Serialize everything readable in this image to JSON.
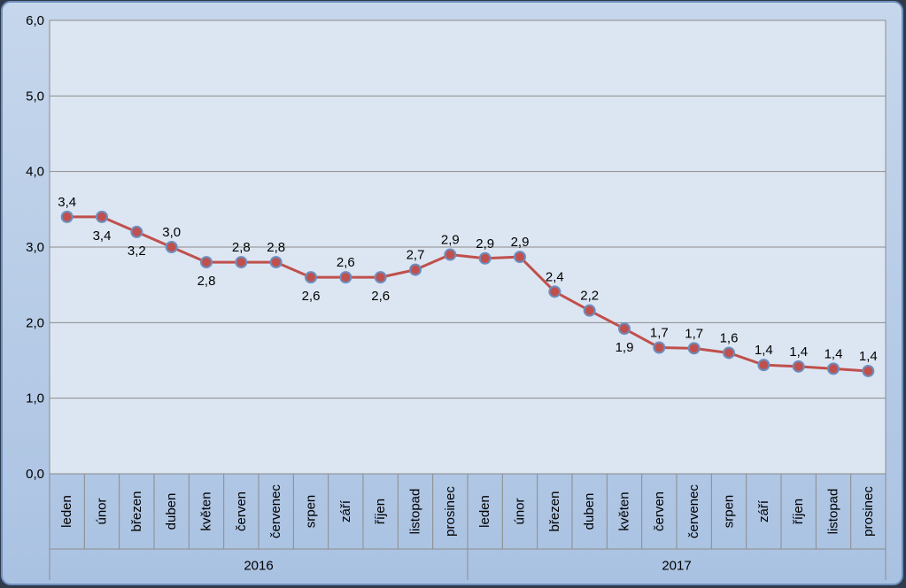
{
  "colors": {
    "background": "#b9cde5",
    "plot_area": "#dce6f2",
    "frame_border": "#6f8fbf",
    "gridline": "#8c8c8c",
    "line": "#c0504d",
    "marker_fill": "#c0504d",
    "marker_edge": "#6c8ebf"
  },
  "chart_data": {
    "type": "line",
    "title": "",
    "xlabel": "",
    "ylabel": "",
    "ylim": [
      0,
      6
    ],
    "y_ticks": [
      "0,0",
      "1,0",
      "2,0",
      "3,0",
      "4,0",
      "5,0",
      "6,0"
    ],
    "grid": true,
    "legend": "none",
    "years": [
      {
        "label": "2016",
        "months": 12
      },
      {
        "label": "2017",
        "months": 12
      }
    ],
    "categories": [
      "leden",
      "únor",
      "březen",
      "duben",
      "květen",
      "červen",
      "červenec",
      "srpen",
      "září",
      "říjen",
      "listopad",
      "prosinec",
      "leden",
      "únor",
      "březen",
      "duben",
      "květen",
      "červen",
      "červenec",
      "srpen",
      "září",
      "říjen",
      "listopad",
      "prosinec"
    ],
    "series": [
      {
        "values": [
          3.4,
          3.4,
          3.2,
          3.0,
          2.8,
          2.8,
          2.8,
          2.6,
          2.6,
          2.6,
          2.7,
          2.9,
          2.85,
          2.87,
          2.41,
          2.16,
          1.92,
          1.67,
          1.66,
          1.6,
          1.44,
          1.42,
          1.39,
          1.36
        ],
        "labels": [
          "3,4",
          "3,4",
          "3,2",
          "3,0",
          "2,8",
          "2,8",
          "2,8",
          "2,6",
          "2,6",
          "2,6",
          "2,7",
          "2,9",
          "2,9",
          "2,9",
          "2,4",
          "2,2",
          "1,9",
          "1,7",
          "1,7",
          "1,6",
          "1,4",
          "1,4",
          "1,4",
          "1,4"
        ],
        "label_positions": [
          "above",
          "below",
          "below",
          "above",
          "below",
          "above",
          "above",
          "below",
          "above",
          "below",
          "above",
          "above",
          "above",
          "above",
          "above",
          "above",
          "below",
          "above",
          "above",
          "above",
          "above",
          "above",
          "above",
          "above"
        ]
      }
    ]
  }
}
